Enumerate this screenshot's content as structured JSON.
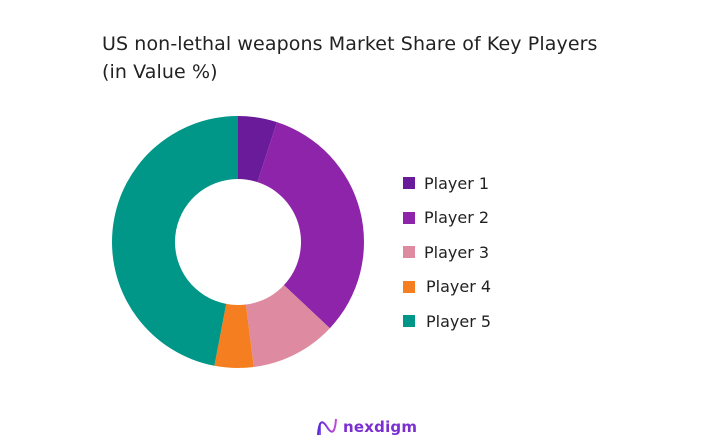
{
  "title_line1": "US non-lethal weapons Market Share of Key Players",
  "title_line2": "(in Value %)",
  "chart_data": {
    "type": "pie",
    "variant": "donut",
    "title": "US non-lethal weapons Market Share of Key Players (in Value %)",
    "categories": [
      "Player 1",
      "Player 2",
      "Player 3",
      "Player 4",
      "Player 5"
    ],
    "values": [
      5,
      32,
      11,
      5,
      47
    ],
    "colors": [
      "#6a1b9a",
      "#8e24aa",
      "#de8aa0",
      "#f57f20",
      "#009688"
    ],
    "legend_position": "right",
    "start_angle": "top, clockwise"
  },
  "legend": [
    {
      "label": "Player 1",
      "color": "#6a1b9a"
    },
    {
      "label": "Player 2",
      "color": "#8e24aa"
    },
    {
      "label": "Player 3",
      "color": "#de8aa0"
    },
    {
      "label": "Player 4",
      "color": "#f57f20"
    },
    {
      "label": "Player 5",
      "color": "#009688"
    }
  ],
  "logo": {
    "text": "nexdigm"
  }
}
